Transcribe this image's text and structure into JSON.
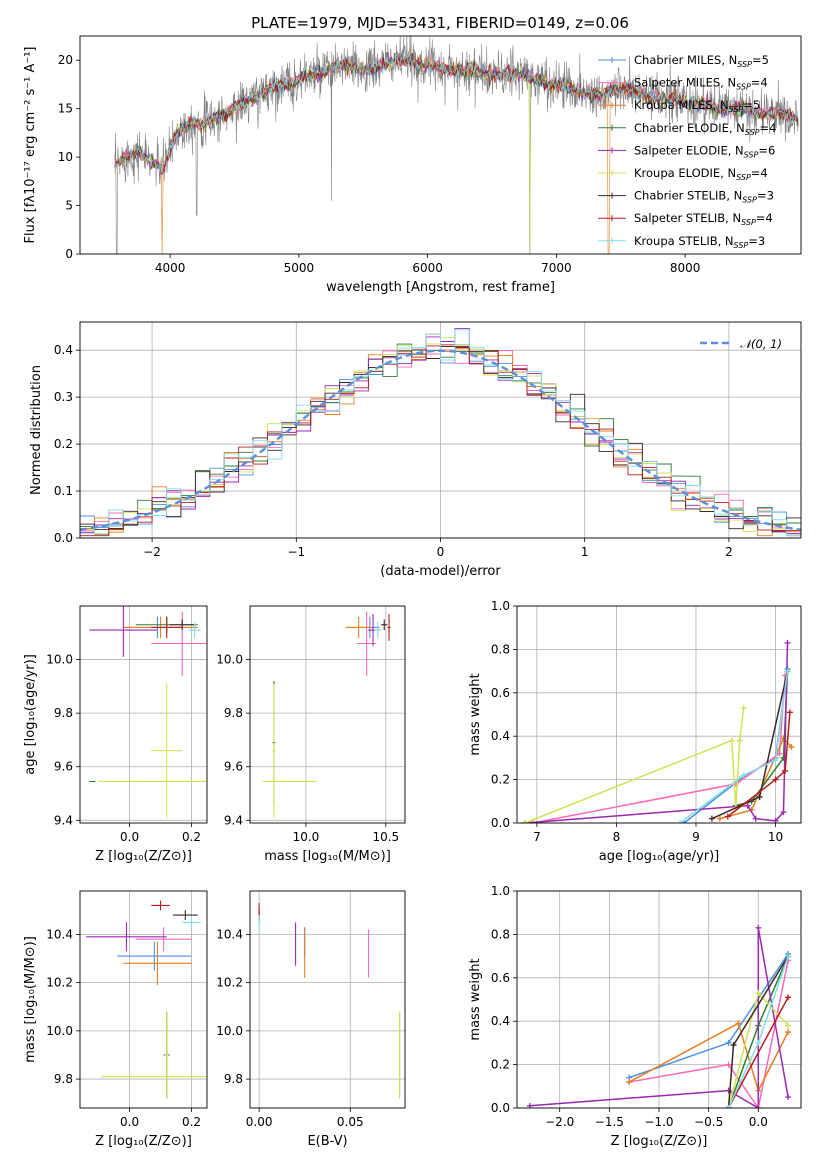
{
  "chart_data": [
    {
      "id": "spectrum",
      "type": "line",
      "title": "PLATE=1979, MJD=53431, FIBERID=0149, z=0.06",
      "xlabel": "wavelength [Angstrom, rest frame]",
      "ylabel": "Flux [fλ10⁻¹⁷ erg cm⁻² s⁻¹ A⁻¹]",
      "xlim": [
        3300,
        8900
      ],
      "ylim": [
        0,
        22.5
      ],
      "xticks": [
        4000,
        5000,
        6000,
        7000,
        8000
      ],
      "yticks": [
        0,
        5,
        10,
        15,
        20
      ],
      "grid": false,
      "legend_position": "top-right",
      "data_color": "#808080",
      "continuum": {
        "x": [
          3570,
          3650,
          3750,
          3850,
          3950,
          4050,
          4150,
          4250,
          4350,
          4450,
          4550,
          4650,
          4750,
          4850,
          4950,
          5050,
          5150,
          5250,
          5350,
          5450,
          5550,
          5650,
          5750,
          5850,
          5950,
          6050,
          6150,
          6250,
          6350,
          6450,
          6550,
          6650,
          6750,
          6850,
          6950,
          7050,
          7150,
          7250,
          7350,
          7450,
          7550,
          7650,
          7750,
          7850,
          7950,
          8050,
          8150,
          8250,
          8350,
          8450,
          8550,
          8650,
          8750,
          8850
        ],
        "y": [
          9.0,
          10.0,
          10.5,
          9.5,
          9.0,
          12.5,
          13.5,
          13.5,
          14.0,
          14.5,
          15.5,
          16.0,
          17.0,
          17.5,
          17.5,
          18.5,
          18.5,
          19.0,
          19.5,
          19.0,
          19.0,
          19.5,
          20.0,
          20.0,
          19.5,
          19.5,
          19.0,
          19.0,
          19.0,
          18.5,
          18.5,
          18.5,
          18.5,
          18.0,
          17.5,
          17.5,
          17.0,
          16.5,
          16.5,
          17.0,
          17.0,
          16.5,
          16.0,
          16.0,
          16.0,
          15.5,
          15.5,
          15.0,
          15.0,
          15.0,
          14.5,
          14.5,
          14.5,
          14.0
        ]
      },
      "series": [
        {
          "name": "Chabrier MILES, N",
          "sub": "SSP",
          "suffix": "=5",
          "color": "#4a90e2"
        },
        {
          "name": "Salpeter MILES, N",
          "sub": "SSP",
          "suffix": "=4",
          "color": "#ff69b4"
        },
        {
          "name": "Kroupa MILES, N",
          "sub": "SSP",
          "suffix": "=5",
          "color": "#e67e22"
        },
        {
          "name": "Chabrier ELODIE, N",
          "sub": "SSP",
          "suffix": "=4",
          "color": "#2e7d32"
        },
        {
          "name": "Salpeter ELODIE, N",
          "sub": "SSP",
          "suffix": "=6",
          "color": "#9c27b0"
        },
        {
          "name": "Kroupa ELODIE, N",
          "sub": "SSP",
          "suffix": "=4",
          "color": "#d4e157"
        },
        {
          "name": "Chabrier STELIB, N",
          "sub": "SSP",
          "suffix": "=3",
          "color": "#3e2723"
        },
        {
          "name": "Salpeter STELIB, N",
          "sub": "SSP",
          "suffix": "=4",
          "color": "#b71c1c"
        },
        {
          "name": "Kroupa STELIB, N",
          "sub": "SSP",
          "suffix": "=3",
          "color": "#80deea"
        }
      ]
    },
    {
      "id": "residual-hist",
      "type": "line",
      "xlabel": "(data-model)/error",
      "ylabel": "Normed distribution",
      "xlim": [
        -2.5,
        2.5
      ],
      "ylim": [
        0,
        0.46
      ],
      "xticks": [
        -2,
        -1,
        0,
        1,
        2
      ],
      "xtick_labels": [
        "−2",
        "−1",
        "0",
        "1",
        "2"
      ],
      "yticks": [
        0.0,
        0.1,
        0.2,
        0.3,
        0.4
      ],
      "ytick_labels": [
        "0.0",
        "0.1",
        "0.2",
        "0.3",
        "0.4"
      ],
      "grid": true,
      "legend_position": "top-right",
      "normal_label": "𝒩(0, 1)",
      "normal_color": "#5b8fd9",
      "bins": {
        "start": -2.5,
        "width": 0.1,
        "count": 50
      }
    },
    {
      "id": "age-vs-z",
      "type": "scatter",
      "xlabel": "Z [log₁₀(Z/Z⊙)]",
      "ylabel": "age  [log₁₀(age/yr)]",
      "xlim": [
        -0.16,
        0.25
      ],
      "ylim": [
        9.39,
        10.2
      ],
      "xticks": [
        0.0,
        0.2
      ],
      "xtick_labels": [
        "0.0",
        "0.2"
      ],
      "yticks": [
        9.4,
        9.6,
        9.8,
        10.0
      ],
      "ytick_labels": [
        "9.4",
        "9.6",
        "9.8",
        "10.0"
      ],
      "grid": true
    },
    {
      "id": "age-vs-mass",
      "type": "scatter",
      "xlabel": "mass [log₁₀(M/M⊙)]",
      "xlim": [
        9.65,
        10.62
      ],
      "ylim": [
        9.39,
        10.2
      ],
      "xticks": [
        10.0,
        10.5
      ],
      "xtick_labels": [
        "10.0",
        "10.5"
      ],
      "yticks": [
        9.4,
        9.6,
        9.8,
        10.0
      ],
      "ytick_labels": [
        "9.4",
        "9.6",
        "9.8",
        "10.0"
      ],
      "grid": true
    },
    {
      "id": "weight-vs-age",
      "type": "line",
      "xlabel": "age  [log₁₀(age/yr)]",
      "ylabel": "mass weight",
      "xlim": [
        6.75,
        10.32
      ],
      "ylim": [
        0,
        1.0
      ],
      "xticks": [
        7,
        8,
        9,
        10
      ],
      "xtick_labels": [
        "7",
        "8",
        "9",
        "10"
      ],
      "yticks": [
        0.0,
        0.2,
        0.4,
        0.6,
        0.8,
        1.0
      ],
      "ytick_labels": [
        "0.0",
        "0.2",
        "0.4",
        "0.6",
        "0.8",
        "1.0"
      ],
      "grid": true
    },
    {
      "id": "mass-vs-z",
      "type": "scatter",
      "xlabel": "Z [log₁₀(Z/Z⊙)]",
      "ylabel": "mass [log₁₀(M/M⊙)]",
      "xlim": [
        -0.16,
        0.25
      ],
      "ylim": [
        9.68,
        10.58
      ],
      "xticks": [
        0.0,
        0.2
      ],
      "xtick_labels": [
        "0.0",
        "0.2"
      ],
      "yticks": [
        9.8,
        10.0,
        10.2,
        10.4
      ],
      "ytick_labels": [
        "9.8",
        "10.0",
        "10.2",
        "10.4"
      ],
      "grid": true
    },
    {
      "id": "mass-vs-ebv",
      "type": "scatter",
      "xlabel": "E(B-V)",
      "xlim": [
        -0.005,
        0.08
      ],
      "ylim": [
        9.68,
        10.58
      ],
      "xticks": [
        0.0,
        0.05
      ],
      "xtick_labels": [
        "0.00",
        "0.05"
      ],
      "yticks": [
        9.8,
        10.0,
        10.2,
        10.4
      ],
      "ytick_labels": [
        "9.8",
        "10.0",
        "10.2",
        "10.4"
      ],
      "grid": true
    },
    {
      "id": "weight-vs-z",
      "type": "line",
      "xlabel": "Z [log₁₀(Z/Z⊙)]",
      "ylabel": "mass weight",
      "xlim": [
        -2.43,
        0.43
      ],
      "ylim": [
        0,
        1.0
      ],
      "xticks": [
        -2.0,
        -1.5,
        -1.0,
        -0.5,
        0.0
      ],
      "xtick_labels": [
        "−2.0",
        "−1.5",
        "−1.0",
        "−0.5",
        "0.0"
      ],
      "yticks": [
        0.0,
        0.2,
        0.4,
        0.6,
        0.8,
        1.0
      ],
      "ytick_labels": [
        "0.0",
        "0.2",
        "0.4",
        "0.6",
        "0.8",
        "1.0"
      ],
      "grid": true
    }
  ],
  "models": {
    "colors": [
      "#4a90e2",
      "#ff69b4",
      "#e67e22",
      "#2e7d32",
      "#9c27b0",
      "#d4e157",
      "#3e2723",
      "#b71c1c",
      "#80deea"
    ],
    "age_z": [
      {
        "c": 0,
        "z": 0.09,
        "zerr": 0.1,
        "age": 10.12,
        "ageerr": 0.04
      },
      {
        "c": 1,
        "z": 0.17,
        "zerr": 0.1,
        "age": 10.06,
        "ageerr": 0.12
      },
      {
        "c": 2,
        "z": 0.1,
        "zerr": 0.12,
        "age": 10.12,
        "ageerr": 0.04
      },
      {
        "c": 3,
        "z": 0.12,
        "zerr": 0.1,
        "age": 10.13,
        "ageerr": 0.03
      },
      {
        "c": 4,
        "z": -0.02,
        "zerr": 0.11,
        "age": 10.11,
        "ageerr": 0.1
      },
      {
        "c": 5,
        "z": 0.12,
        "zerr": 0.05,
        "age": 9.66,
        "ageerr": 0.25
      },
      {
        "c": 5,
        "z": 0.12,
        "zerr": 0.22,
        "age": 9.545,
        "ageerr": 0.0
      },
      {
        "c": 3,
        "z": -0.12,
        "zerr": 0.01,
        "age": 9.545,
        "ageerr": 0.0
      },
      {
        "c": 6,
        "z": 0.17,
        "zerr": 0.04,
        "age": 10.13,
        "ageerr": 0.02
      },
      {
        "c": 7,
        "z": 0.12,
        "zerr": 0.05,
        "age": 10.12,
        "ageerr": 0.04
      },
      {
        "c": 8,
        "z": 0.21,
        "zerr": 0.02,
        "age": 10.11,
        "ageerr": 0.03
      }
    ],
    "age_mass": [
      {
        "c": 0,
        "m": 10.4,
        "merr": 0.06,
        "age": 10.12,
        "ageerr": 0.04
      },
      {
        "c": 1,
        "m": 10.38,
        "merr": 0.06,
        "age": 10.06,
        "ageerr": 0.12
      },
      {
        "c": 2,
        "m": 10.33,
        "merr": 0.08,
        "age": 10.12,
        "ageerr": 0.04
      },
      {
        "c": 3,
        "m": 9.8,
        "merr": 0.01,
        "age": 9.69,
        "ageerr": 0.23
      },
      {
        "c": 5,
        "m": 9.8,
        "merr": 0.01,
        "age": 9.66,
        "ageerr": 0.25
      },
      {
        "c": 5,
        "m": 9.9,
        "merr": 0.17,
        "age": 9.545,
        "ageerr": 0.0
      },
      {
        "c": 4,
        "m": 10.42,
        "merr": 0.03,
        "age": 10.11,
        "ageerr": 0.06
      },
      {
        "c": 6,
        "m": 10.49,
        "merr": 0.02,
        "age": 10.13,
        "ageerr": 0.02
      },
      {
        "c": 7,
        "m": 10.52,
        "merr": 0.01,
        "age": 10.12,
        "ageerr": 0.05
      },
      {
        "c": 8,
        "m": 10.45,
        "merr": 0.02,
        "age": 10.11,
        "ageerr": 0.03
      }
    ],
    "weight_age": [
      {
        "c": 0,
        "pts": [
          [
            8.85,
            0.0
          ],
          [
            9.55,
            0.2
          ],
          [
            10.0,
            0.3
          ],
          [
            10.15,
            0.71
          ]
        ]
      },
      {
        "c": 1,
        "pts": [
          [
            6.95,
            0.0
          ],
          [
            9.5,
            0.18
          ],
          [
            10.05,
            0.32
          ],
          [
            10.12,
            0.68
          ]
        ]
      },
      {
        "c": 2,
        "pts": [
          [
            9.3,
            0.02
          ],
          [
            9.7,
            0.06
          ],
          [
            10.1,
            0.39
          ],
          [
            10.2,
            0.35
          ]
        ]
      },
      {
        "c": 3,
        "pts": [
          [
            9.5,
            0.08
          ],
          [
            9.7,
            0.1
          ],
          [
            10.1,
            0.3
          ],
          [
            10.15,
            0.7
          ]
        ]
      },
      {
        "c": 4,
        "pts": [
          [
            6.85,
            0.0
          ],
          [
            9.65,
            0.08
          ],
          [
            9.75,
            0.02
          ],
          [
            10.0,
            0.01
          ],
          [
            10.1,
            0.05
          ],
          [
            10.15,
            0.83
          ]
        ]
      },
      {
        "c": 5,
        "pts": [
          [
            6.85,
            0.0
          ],
          [
            9.45,
            0.38
          ],
          [
            9.5,
            0.07
          ],
          [
            9.55,
            0.38
          ],
          [
            9.6,
            0.53
          ]
        ]
      },
      {
        "c": 6,
        "pts": [
          [
            9.2,
            0.02
          ],
          [
            9.8,
            0.12
          ],
          [
            10.15,
            0.7
          ]
        ]
      },
      {
        "c": 7,
        "pts": [
          [
            9.4,
            0.03
          ],
          [
            10.0,
            0.2
          ],
          [
            10.12,
            0.24
          ],
          [
            10.18,
            0.51
          ]
        ]
      },
      {
        "c": 8,
        "pts": [
          [
            8.8,
            0.0
          ],
          [
            9.6,
            0.22
          ],
          [
            10.0,
            0.29
          ],
          [
            10.15,
            0.7
          ]
        ]
      }
    ],
    "mass_z": [
      {
        "c": 0,
        "z": 0.08,
        "zerr": 0.12,
        "m": 10.31,
        "merr": 0.06
      },
      {
        "c": 1,
        "z": 0.11,
        "zerr": 0.09,
        "m": 10.38,
        "merr": 0.05
      },
      {
        "c": 2,
        "z": 0.09,
        "zerr": 0.11,
        "m": 10.28,
        "merr": 0.09
      },
      {
        "c": 3,
        "z": 0.12,
        "zerr": 0.01,
        "m": 9.9,
        "merr": 0.18
      },
      {
        "c": 4,
        "z": -0.01,
        "zerr": 0.13,
        "m": 10.39,
        "merr": 0.06
      },
      {
        "c": 5,
        "z": 0.12,
        "zerr": 0.21,
        "m": 9.81,
        "merr": 0.005
      },
      {
        "c": 5,
        "z": 0.12,
        "zerr": 0.005,
        "m": 9.9,
        "merr": 0.18
      },
      {
        "c": 6,
        "z": 0.18,
        "zerr": 0.04,
        "m": 10.48,
        "merr": 0.02
      },
      {
        "c": 7,
        "z": 0.1,
        "zerr": 0.03,
        "m": 10.52,
        "merr": 0.02
      },
      {
        "c": 8,
        "z": 0.2,
        "zerr": 0.03,
        "m": 10.45,
        "merr": 0.02
      }
    ],
    "mass_ebv": [
      {
        "c": 0,
        "e": 0.025,
        "m": 10.37,
        "merr": 0.06
      },
      {
        "c": 2,
        "e": 0.025,
        "m": 10.32,
        "merr": 0.1
      },
      {
        "c": 1,
        "e": 0.06,
        "m": 10.32,
        "merr": 0.1
      },
      {
        "c": 4,
        "e": 0.02,
        "m": 10.36,
        "merr": 0.09
      },
      {
        "c": 3,
        "e": 0.077,
        "m": 9.9,
        "merr": 0.18
      },
      {
        "c": 5,
        "e": 0.077,
        "m": 9.9,
        "merr": 0.18
      },
      {
        "c": 6,
        "e": 0.0,
        "m": 10.48,
        "merr": 0.02
      },
      {
        "c": 7,
        "e": 0.0,
        "m": 10.49,
        "merr": 0.04
      },
      {
        "c": 8,
        "e": 0.0,
        "m": 10.45,
        "merr": 0.03
      }
    ],
    "weight_z": [
      {
        "c": 0,
        "pts": [
          [
            -1.3,
            0.14
          ],
          [
            -0.3,
            0.3
          ],
          [
            0.3,
            0.71
          ]
        ]
      },
      {
        "c": 1,
        "pts": [
          [
            -1.3,
            0.12
          ],
          [
            -0.3,
            0.2
          ],
          [
            0.0,
            0.0
          ],
          [
            0.3,
            0.68
          ]
        ]
      },
      {
        "c": 2,
        "pts": [
          [
            -1.3,
            0.12
          ],
          [
            -0.2,
            0.39
          ],
          [
            0.0,
            0.08
          ],
          [
            0.3,
            0.35
          ]
        ]
      },
      {
        "c": 3,
        "pts": [
          [
            -0.3,
            0.0
          ],
          [
            0.0,
            0.38
          ],
          [
            0.3,
            0.7
          ]
        ]
      },
      {
        "c": 4,
        "pts": [
          [
            -2.3,
            0.01
          ],
          [
            -0.3,
            0.08
          ],
          [
            0.0,
            0.0
          ],
          [
            0.0,
            0.83
          ],
          [
            0.3,
            0.05
          ]
        ]
      },
      {
        "c": 5,
        "pts": [
          [
            -0.3,
            0.0
          ],
          [
            0.0,
            0.53
          ],
          [
            0.3,
            0.38
          ]
        ]
      },
      {
        "c": 6,
        "pts": [
          [
            -0.3,
            0.0
          ],
          [
            -0.25,
            0.29
          ],
          [
            0.3,
            0.7
          ]
        ]
      },
      {
        "c": 7,
        "pts": [
          [
            -0.3,
            0.0
          ],
          [
            0.3,
            0.51
          ]
        ]
      },
      {
        "c": 8,
        "pts": [
          [
            -0.3,
            0.0
          ],
          [
            0.0,
            0.3
          ],
          [
            0.3,
            0.7
          ]
        ]
      }
    ]
  }
}
